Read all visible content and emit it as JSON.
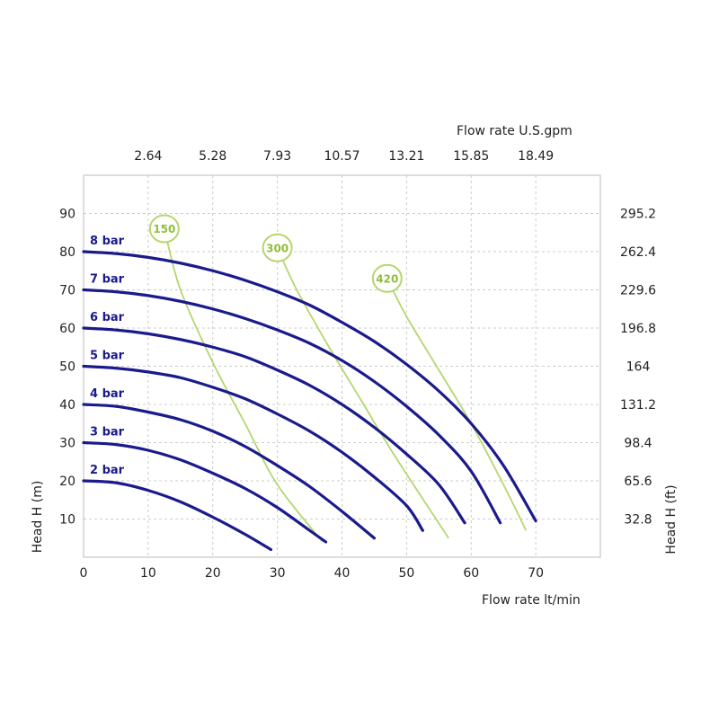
{
  "chart_data": {
    "type": "line",
    "title_top": "Flow rate U.S.gpm",
    "xlabel": "Flow rate  lt/min",
    "ylabel_left": "Head H (m)",
    "ylabel_right": "Head H (ft)",
    "xlim": [
      0,
      80
    ],
    "ylim": [
      0,
      100
    ],
    "x_ticks": [
      "0",
      "10",
      "20",
      "30",
      "40",
      "50",
      "60",
      "70"
    ],
    "y_ticks": [
      "10",
      "20",
      "30",
      "40",
      "50",
      "60",
      "70",
      "80",
      "90"
    ],
    "top_ticks": [
      "2.64",
      "5.28",
      "7.93",
      "10.57",
      "13.21",
      "15.85",
      "18.49"
    ],
    "right_ticks": [
      "32.8",
      "65.6",
      "98.4",
      "131.2",
      "164",
      "196.8",
      "229.6",
      "262.4",
      "295.2"
    ],
    "grid": true,
    "colors": {
      "curve": "#1a1a8c",
      "consumption": "#b5d66e",
      "grid": "#cccccc",
      "frame": "#bbbbbb"
    },
    "series": [
      {
        "name": "2 bar",
        "x": [
          0,
          5,
          10,
          15,
          20,
          25,
          29
        ],
        "y": [
          20,
          19.5,
          17.5,
          14.5,
          10.5,
          6,
          2
        ]
      },
      {
        "name": "3 bar",
        "x": [
          0,
          5,
          10,
          15,
          20,
          25,
          30,
          35,
          37.5
        ],
        "y": [
          30,
          29.5,
          28,
          25.5,
          22,
          18,
          13,
          7,
          4
        ]
      },
      {
        "name": "4 bar",
        "x": [
          0,
          5,
          10,
          15,
          20,
          25,
          30,
          35,
          40,
          45
        ],
        "y": [
          40,
          39.5,
          38,
          36,
          33,
          29,
          24,
          18.5,
          12,
          5
        ]
      },
      {
        "name": "5 bar",
        "x": [
          0,
          5,
          10,
          15,
          20,
          25,
          30,
          35,
          40,
          45,
          50,
          52.5
        ],
        "y": [
          50,
          49.5,
          48.5,
          47,
          44.5,
          41.5,
          37.5,
          33,
          27.5,
          21,
          13.5,
          7
        ]
      },
      {
        "name": "6 bar",
        "x": [
          0,
          5,
          10,
          15,
          20,
          25,
          30,
          35,
          40,
          45,
          50,
          55,
          59
        ],
        "y": [
          60,
          59.5,
          58.5,
          57,
          55,
          52.5,
          49,
          45,
          40,
          34,
          27,
          19,
          9
        ]
      },
      {
        "name": "7 bar",
        "x": [
          0,
          5,
          10,
          15,
          20,
          25,
          30,
          35,
          40,
          45,
          50,
          55,
          60,
          64.5
        ],
        "y": [
          70,
          69.5,
          68.5,
          67,
          65,
          62.5,
          59.5,
          56,
          51.5,
          46,
          39.5,
          32,
          22.5,
          9
        ]
      },
      {
        "name": "8 bar",
        "x": [
          0,
          5,
          10,
          15,
          20,
          25,
          30,
          35,
          40,
          45,
          50,
          55,
          60,
          65,
          70
        ],
        "y": [
          80,
          79.5,
          78.5,
          77,
          75,
          72.5,
          69.5,
          66,
          61.5,
          56.5,
          50.5,
          43.5,
          35,
          24,
          9.5
        ]
      }
    ],
    "consumption_lines": [
      {
        "label": "150",
        "x": [
          12.5,
          15,
          20,
          25,
          30,
          37
        ],
        "y": [
          86,
          70,
          51,
          35,
          19,
          4
        ]
      },
      {
        "label": "300",
        "x": [
          30,
          33,
          38,
          43,
          48,
          56.5
        ],
        "y": [
          81,
          70,
          55,
          41,
          27,
          5
        ]
      },
      {
        "label": "420",
        "x": [
          47,
          50,
          55,
          60,
          65,
          68.5
        ],
        "y": [
          73,
          63,
          49,
          35,
          19,
          7
        ]
      }
    ]
  }
}
